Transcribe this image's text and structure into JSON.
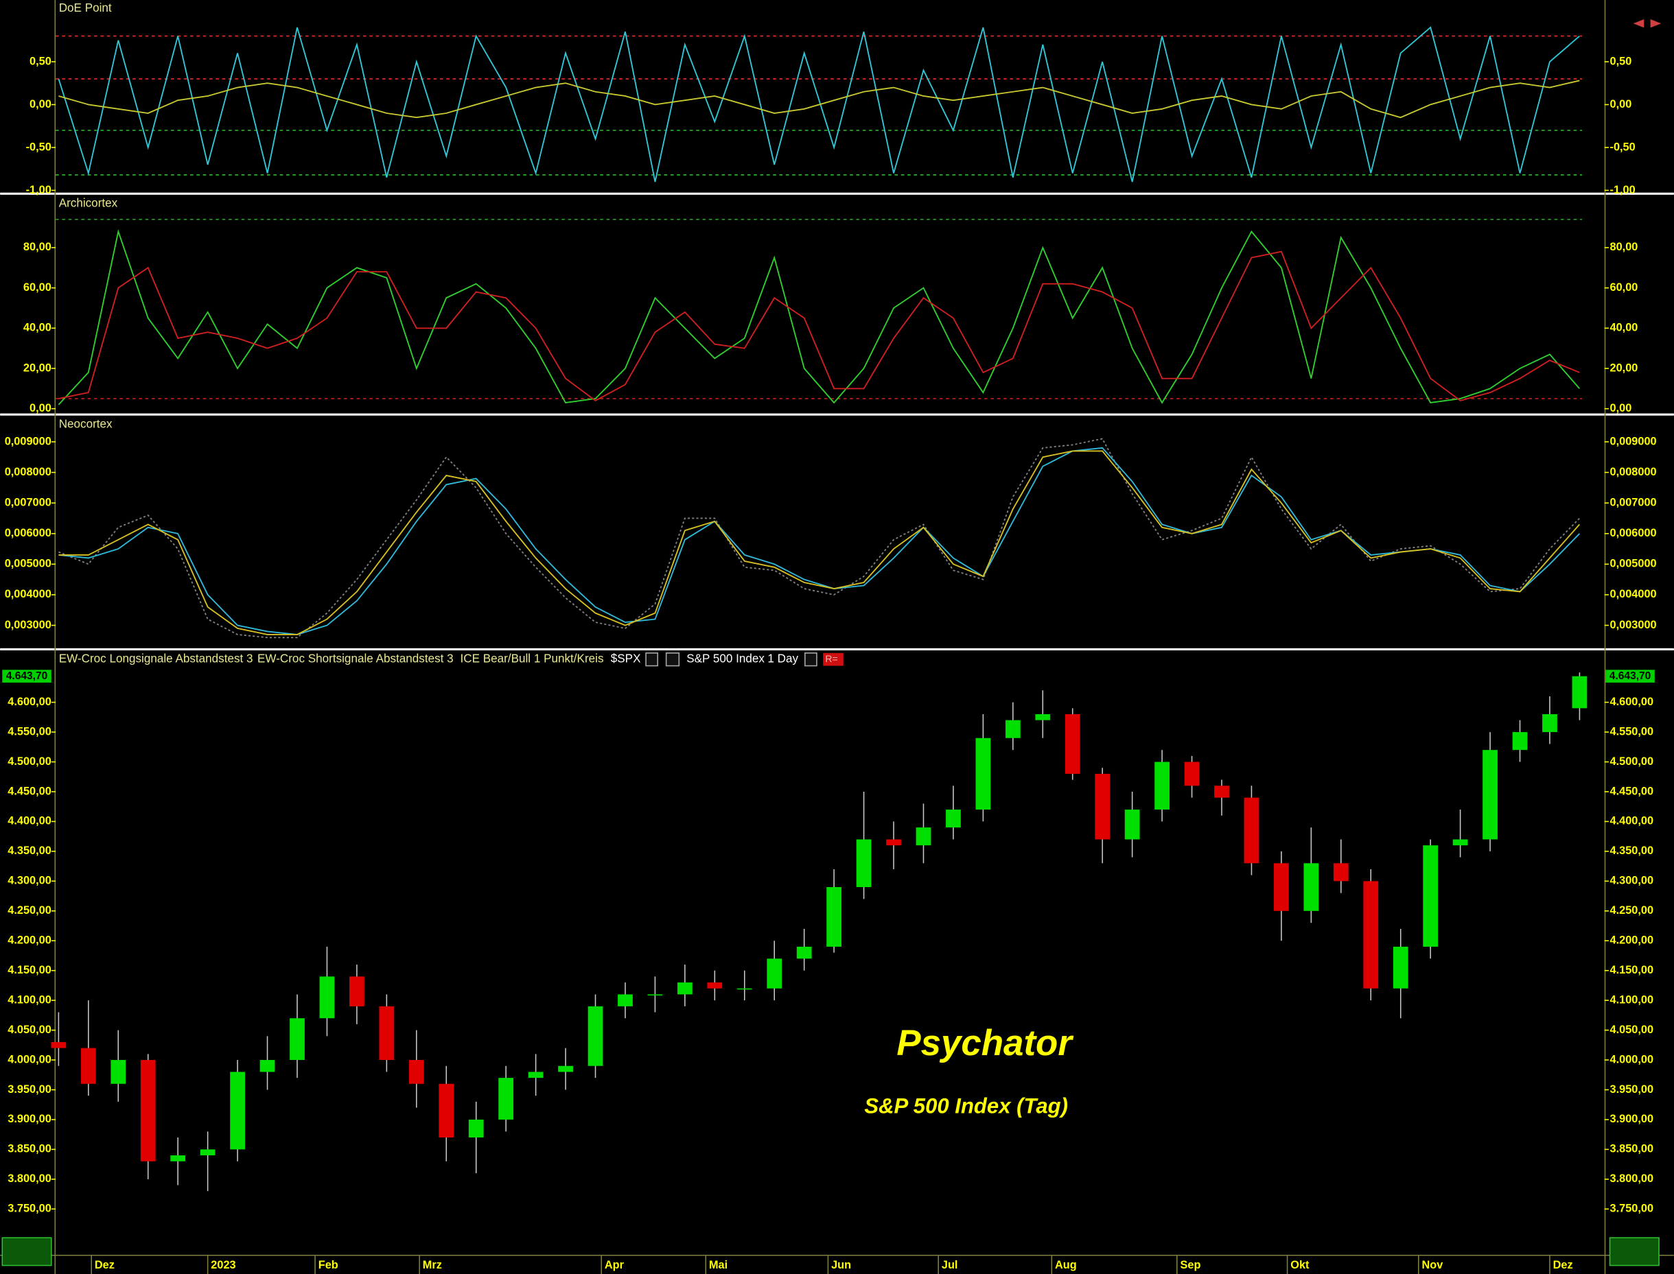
{
  "chart_data": [
    {
      "type": "line",
      "title": "DoE Point",
      "xlim": [
        -0.1,
        51.8
      ],
      "ylim": [
        -1.02,
        1.22
      ],
      "yticks": [
        {
          "value": -1,
          "label": "-1,00"
        },
        {
          "value": -0.5,
          "label": "-0,50"
        },
        {
          "value": 0,
          "label": "0,00"
        },
        {
          "value": 0.5,
          "label": "0,50"
        }
      ],
      "levels": [
        {
          "value": 0.8,
          "color": "#ff3030"
        },
        {
          "value": 0.3,
          "color": "#ff3030"
        },
        {
          "value": -0.3,
          "color": "#30c030"
        },
        {
          "value": -0.82,
          "color": "#30c030"
        }
      ],
      "series": [
        {
          "color": "#30c8d8",
          "values": [
            0.3,
            -0.8,
            0.75,
            -0.5,
            0.8,
            -0.7,
            0.6,
            -0.8,
            0.9,
            -0.3,
            0.7,
            -0.85,
            0.5,
            -0.6,
            0.8,
            0.2,
            -0.8,
            0.6,
            -0.4,
            0.85,
            -0.9,
            0.7,
            -0.2,
            0.8,
            -0.7,
            0.6,
            -0.5,
            0.85,
            -0.8,
            0.4,
            -0.3,
            0.9,
            -0.85,
            0.7,
            -0.8,
            0.5,
            -0.9,
            0.8,
            -0.6,
            0.3,
            -0.85,
            0.8,
            -0.5,
            0.7,
            -0.8,
            0.6,
            0.9,
            -0.4,
            0.8,
            -0.8,
            0.5,
            0.8
          ]
        },
        {
          "color": "#c8c830",
          "values": [
            0.1,
            0.0,
            -0.05,
            -0.1,
            0.05,
            0.1,
            0.2,
            0.25,
            0.2,
            0.1,
            0.0,
            -0.1,
            -0.15,
            -0.1,
            0.0,
            0.1,
            0.2,
            0.25,
            0.15,
            0.1,
            0.0,
            0.05,
            0.1,
            0.0,
            -0.1,
            -0.05,
            0.05,
            0.15,
            0.2,
            0.1,
            0.05,
            0.1,
            0.15,
            0.2,
            0.1,
            0.0,
            -0.1,
            -0.05,
            0.05,
            0.1,
            0.0,
            -0.05,
            0.1,
            0.15,
            -0.05,
            -0.15,
            0.0,
            0.1,
            0.2,
            0.25,
            0.2,
            0.28
          ]
        }
      ]
    },
    {
      "type": "line",
      "title": "Archicortex",
      "xlim": [
        -0.1,
        51.8
      ],
      "ylim": [
        -2.1,
        106
      ],
      "yticks": [
        {
          "value": 0,
          "label": "0,00"
        },
        {
          "value": 20,
          "label": "20,00"
        },
        {
          "value": 40,
          "label": "40,00"
        },
        {
          "value": 60,
          "label": "60,00"
        },
        {
          "value": 80,
          "label": "80,00"
        }
      ],
      "levels": [
        {
          "value": 94,
          "color": "#20a020"
        },
        {
          "value": 5,
          "color": "#c02020"
        }
      ],
      "series": [
        {
          "color": "#30d030",
          "values": [
            2,
            18,
            88,
            45,
            25,
            48,
            20,
            42,
            30,
            60,
            70,
            65,
            20,
            55,
            62,
            50,
            30,
            3,
            5,
            20,
            55,
            40,
            25,
            35,
            75,
            20,
            3,
            20,
            50,
            60,
            30,
            8,
            40,
            80,
            45,
            70,
            30,
            3,
            27,
            60,
            88,
            70,
            15,
            85,
            60,
            30,
            3,
            5,
            10,
            20,
            27,
            10
          ]
        },
        {
          "color": "#d02020",
          "values": [
            5,
            8,
            60,
            70,
            35,
            38,
            35,
            30,
            35,
            45,
            68,
            68,
            40,
            40,
            58,
            55,
            40,
            15,
            4,
            12,
            38,
            48,
            32,
            30,
            55,
            45,
            10,
            10,
            35,
            55,
            45,
            18,
            25,
            62,
            62,
            58,
            50,
            15,
            15,
            45,
            75,
            78,
            40,
            55,
            70,
            45,
            15,
            4,
            8,
            15,
            24,
            18
          ]
        }
      ]
    },
    {
      "type": "line",
      "title": "Neocortex",
      "xlim": [
        -0.1,
        51.8
      ],
      "ylim": [
        0.00227,
        0.00984
      ],
      "yticks": [
        {
          "value": 0.003,
          "label": "0,003000"
        },
        {
          "value": 0.004,
          "label": "0,004000"
        },
        {
          "value": 0.005,
          "label": "0,005000"
        },
        {
          "value": 0.006,
          "label": "0,006000"
        },
        {
          "value": 0.007,
          "label": "0,007000"
        },
        {
          "value": 0.008,
          "label": "0,008000"
        },
        {
          "value": 0.009,
          "label": "0,009000"
        }
      ],
      "levels": [],
      "series": [
        {
          "color": "#808080",
          "style": "dotted",
          "values": [
            0.0054,
            0.005,
            0.0062,
            0.0066,
            0.0055,
            0.0032,
            0.0027,
            0.0026,
            0.0026,
            0.0034,
            0.0045,
            0.0058,
            0.0071,
            0.0085,
            0.0075,
            0.006,
            0.0049,
            0.0039,
            0.0031,
            0.0029,
            0.0037,
            0.0065,
            0.0065,
            0.0049,
            0.0048,
            0.0042,
            0.004,
            0.0046,
            0.0058,
            0.0063,
            0.0048,
            0.0045,
            0.0072,
            0.0088,
            0.0089,
            0.0091,
            0.0073,
            0.0058,
            0.0061,
            0.0065,
            0.0085,
            0.0068,
            0.0055,
            0.0063,
            0.0051,
            0.0055,
            0.0056,
            0.005,
            0.0041,
            0.0042,
            0.0055,
            0.0065
          ]
        },
        {
          "color": "#30b8d8",
          "values": [
            0.0053,
            0.0052,
            0.0055,
            0.0062,
            0.006,
            0.004,
            0.003,
            0.0028,
            0.0027,
            0.003,
            0.0038,
            0.005,
            0.0064,
            0.0076,
            0.0078,
            0.0068,
            0.0055,
            0.0045,
            0.0036,
            0.0031,
            0.0032,
            0.0058,
            0.0064,
            0.0053,
            0.005,
            0.0045,
            0.0042,
            0.0043,
            0.0052,
            0.0062,
            0.0052,
            0.0046,
            0.0064,
            0.0082,
            0.0087,
            0.0088,
            0.0077,
            0.0063,
            0.006,
            0.0062,
            0.0079,
            0.0072,
            0.0058,
            0.0061,
            0.0053,
            0.0054,
            0.0055,
            0.0053,
            0.0043,
            0.0041,
            0.005,
            0.006
          ]
        },
        {
          "color": "#d8c020",
          "values": [
            0.0053,
            0.0053,
            0.0058,
            0.0063,
            0.0058,
            0.0036,
            0.0029,
            0.0027,
            0.0027,
            0.0032,
            0.0041,
            0.0054,
            0.0067,
            0.0079,
            0.0077,
            0.0064,
            0.0052,
            0.0042,
            0.0034,
            0.003,
            0.0034,
            0.0061,
            0.0064,
            0.0051,
            0.0049,
            0.0044,
            0.0042,
            0.0044,
            0.0055,
            0.0062,
            0.005,
            0.0046,
            0.0068,
            0.0085,
            0.0087,
            0.0087,
            0.0075,
            0.0062,
            0.006,
            0.0063,
            0.0081,
            0.007,
            0.0057,
            0.0061,
            0.0052,
            0.0054,
            0.0055,
            0.0052,
            0.0042,
            0.0041,
            0.0052,
            0.0063
          ]
        }
      ]
    },
    {
      "type": "candlestick",
      "title": "Psychator",
      "subtitle": "S&P 500 Index (Tag)",
      "legend": [
        "EW-Croc Longsignale Abstandstest 3",
        "EW-Croc Shortsignale Abstandstest 3",
        "ICE Bear/Bull 1 Punkt/Kreis",
        "$SPX",
        "S&P 500 Index",
        "1 Day",
        "R="
      ],
      "last_value": {
        "value": 4643.7,
        "label": "4.643,70"
      },
      "up_color": "#00e000",
      "down_color": "#e00000",
      "xlim": [
        -0.1,
        51.8
      ],
      "ylim": [
        3675,
        4654
      ],
      "xticks": [
        {
          "value": 1.1,
          "label": "Dez"
        },
        {
          "value": 5.0,
          "label": "2023"
        },
        {
          "value": 8.6,
          "label": "Feb"
        },
        {
          "value": 12.1,
          "label": "Mrz"
        },
        {
          "value": 18.2,
          "label": "Apr"
        },
        {
          "value": 21.7,
          "label": "Mai"
        },
        {
          "value": 25.8,
          "label": "Jun"
        },
        {
          "value": 29.5,
          "label": "Jul"
        },
        {
          "value": 33.3,
          "label": "Aug"
        },
        {
          "value": 37.5,
          "label": "Sep"
        },
        {
          "value": 41.2,
          "label": "Okt"
        },
        {
          "value": 45.6,
          "label": "Nov"
        },
        {
          "value": 50.0,
          "label": "Dez"
        }
      ],
      "yticks": [
        {
          "value": 3750,
          "label": "3.750,00"
        },
        {
          "value": 3800,
          "label": "3.800,00"
        },
        {
          "value": 3850,
          "label": "3.850,00"
        },
        {
          "value": 3900,
          "label": "3.900,00"
        },
        {
          "value": 3950,
          "label": "3.950,00"
        },
        {
          "value": 4000,
          "label": "4.000,00"
        },
        {
          "value": 4050,
          "label": "4.050,00"
        },
        {
          "value": 4100,
          "label": "4.100,00"
        },
        {
          "value": 4150,
          "label": "4.150,00"
        },
        {
          "value": 4200,
          "label": "4.200,00"
        },
        {
          "value": 4250,
          "label": "4.250,00"
        },
        {
          "value": 4300,
          "label": "4.300,00"
        },
        {
          "value": 4350,
          "label": "4.350,00"
        },
        {
          "value": 4400,
          "label": "4.400,00"
        },
        {
          "value": 4450,
          "label": "4.450,00"
        },
        {
          "value": 4500,
          "label": "4.500,00"
        },
        {
          "value": 4550,
          "label": "4.550,00"
        },
        {
          "value": 4600,
          "label": "4.600,00"
        }
      ],
      "open": [
        4030,
        4020,
        3960,
        4000,
        3830,
        3840,
        3850,
        3980,
        4000,
        4070,
        4140,
        4090,
        4000,
        3960,
        3870,
        3900,
        3970,
        3980,
        3990,
        4090,
        4110,
        4110,
        4130,
        4120,
        4120,
        4170,
        4190,
        4290,
        4370,
        4360,
        4390,
        4420,
        4540,
        4570,
        4580,
        4480,
        4370,
        4420,
        4500,
        4460,
        4440,
        4330,
        4250,
        4330,
        4300,
        4120,
        4190,
        4360,
        4370,
        4520,
        4550,
        4590
      ],
      "high": [
        4080,
        4100,
        4050,
        4010,
        3870,
        3880,
        4000,
        4040,
        4110,
        4190,
        4160,
        4110,
        4050,
        3990,
        3930,
        3990,
        4010,
        4020,
        4110,
        4130,
        4140,
        4160,
        4150,
        4150,
        4200,
        4220,
        4320,
        4450,
        4400,
        4430,
        4460,
        4580,
        4600,
        4620,
        4590,
        4490,
        4450,
        4520,
        4510,
        4470,
        4460,
        4350,
        4390,
        4370,
        4320,
        4220,
        4370,
        4420,
        4550,
        4570,
        4610,
        4650
      ],
      "low": [
        3990,
        3940,
        3930,
        3800,
        3790,
        3780,
        3830,
        3950,
        3970,
        4040,
        4060,
        3980,
        3920,
        3830,
        3810,
        3880,
        3940,
        3950,
        3970,
        4070,
        4080,
        4090,
        4100,
        4100,
        4100,
        4150,
        4180,
        4270,
        4320,
        4330,
        4370,
        4400,
        4520,
        4540,
        4470,
        4330,
        4340,
        4400,
        4440,
        4410,
        4310,
        4200,
        4230,
        4280,
        4100,
        4070,
        4170,
        4340,
        4350,
        4500,
        4530,
        4570
      ],
      "close": [
        4020,
        3960,
        4000,
        3830,
        3840,
        3850,
        3980,
        4000,
        4070,
        4140,
        4090,
        4000,
        3960,
        3870,
        3900,
        3970,
        3980,
        3990,
        4090,
        4110,
        4110,
        4130,
        4120,
        4120,
        4170,
        4190,
        4290,
        4370,
        4360,
        4390,
        4420,
        4540,
        4570,
        4580,
        4480,
        4370,
        4420,
        4500,
        4460,
        4440,
        4330,
        4250,
        4330,
        4300,
        4120,
        4190,
        4360,
        4370,
        4520,
        4550,
        4580,
        4643.7
      ]
    }
  ]
}
